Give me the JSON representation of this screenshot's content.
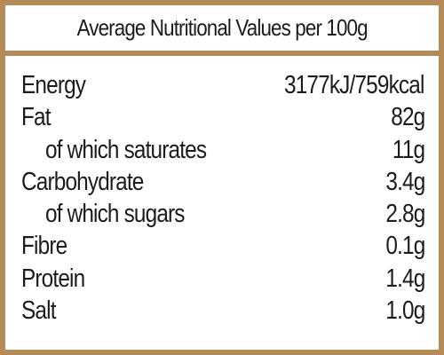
{
  "header": {
    "title": "Average Nutritional Values per 100g"
  },
  "colors": {
    "border": "#B48A56",
    "text": "#1c1c1c"
  },
  "rows": [
    {
      "name": "Energy",
      "value": "3177kJ/759kcal",
      "sub": false
    },
    {
      "name": "Fat",
      "value": "82g",
      "sub": false
    },
    {
      "name": "of which saturates",
      "value": "11g",
      "sub": true
    },
    {
      "name": "Carbohydrate",
      "value": "3.4g",
      "sub": false
    },
    {
      "name": "of which sugars",
      "value": "2.8g",
      "sub": true
    },
    {
      "name": "Fibre",
      "value": "0.1g",
      "sub": false
    },
    {
      "name": "Protein",
      "value": "1.4g",
      "sub": false
    },
    {
      "name": "Salt",
      "value": "1.0g",
      "sub": false
    }
  ]
}
